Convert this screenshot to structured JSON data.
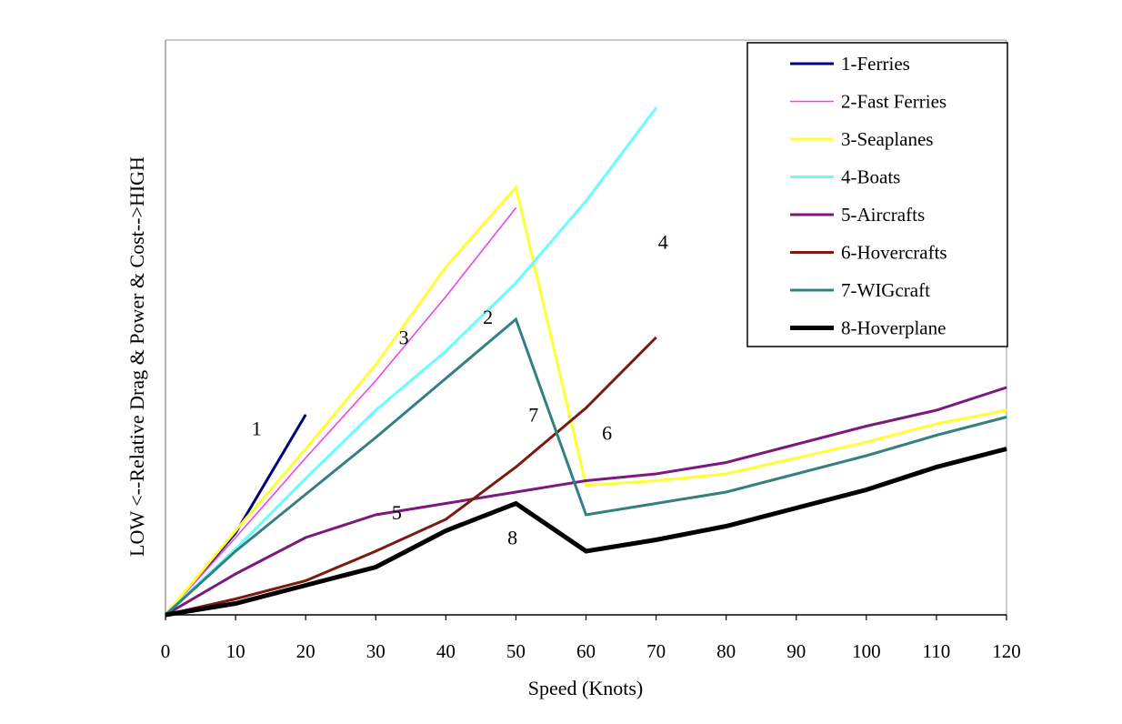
{
  "chart_data": {
    "type": "line",
    "xlabel": "Speed (Knots)",
    "ylabel": "LOW <--Relative Drag & Power & Cost-->HIGH",
    "xlim": [
      0,
      120
    ],
    "ylim": [
      0,
      100
    ],
    "grid": false,
    "legend_position": "top-right",
    "x_ticks": [
      0,
      10,
      20,
      30,
      40,
      50,
      60,
      70,
      80,
      90,
      100,
      110,
      120
    ],
    "x_tick_labels": [
      "0",
      "10",
      "20",
      "30",
      "40",
      "50",
      "60",
      "70",
      "80",
      "90",
      "100",
      "110",
      "120"
    ],
    "series": [
      {
        "name": "1-Ferries",
        "line_label": "1",
        "label_at": [
          13,
          39.5
        ],
        "color": "#000080",
        "width": 3,
        "points": [
          [
            0,
            0
          ],
          [
            10,
            18
          ],
          [
            20,
            44
          ]
        ]
      },
      {
        "name": "2-Fast Ferries",
        "line_label": "2",
        "label_at": [
          46,
          64
        ],
        "color": "#ee44ee",
        "width": 1.6,
        "points": [
          [
            0,
            0
          ],
          [
            10,
            17
          ],
          [
            20,
            34.5
          ],
          [
            30,
            51.5
          ],
          [
            40,
            70
          ],
          [
            50,
            89.5
          ]
        ]
      },
      {
        "name": "3-Seaplanes",
        "line_label": "3",
        "label_at": [
          34,
          59.5
        ],
        "color": "#ffff33",
        "width": 3,
        "points": [
          [
            0,
            0
          ],
          [
            10,
            18.5
          ],
          [
            20,
            36.5
          ],
          [
            30,
            55
          ],
          [
            40,
            76.5
          ],
          [
            50,
            94
          ],
          [
            60,
            28.5
          ],
          [
            70,
            29.5
          ],
          [
            80,
            31
          ],
          [
            90,
            34.5
          ],
          [
            100,
            38
          ],
          [
            110,
            42
          ],
          [
            120,
            45
          ]
        ]
      },
      {
        "name": "4-Boats",
        "line_label": "4",
        "label_at": [
          71,
          80.5
        ],
        "color": "#66ffff",
        "width": 3,
        "points": [
          [
            0,
            0
          ],
          [
            10,
            14.5
          ],
          [
            20,
            30
          ],
          [
            30,
            45
          ],
          [
            40,
            58
          ],
          [
            50,
            73
          ],
          [
            60,
            91
          ],
          [
            70,
            111.5
          ]
        ]
      },
      {
        "name": "5-Aircrafts",
        "line_label": "5",
        "label_at": [
          33,
          21
        ],
        "color": "#7a1a7a",
        "width": 3,
        "points": [
          [
            0,
            0
          ],
          [
            10,
            9
          ],
          [
            20,
            17
          ],
          [
            30,
            22
          ],
          [
            40,
            24.5
          ],
          [
            50,
            27
          ],
          [
            60,
            29.5
          ],
          [
            70,
            31
          ],
          [
            80,
            33.5
          ],
          [
            90,
            37.5
          ],
          [
            100,
            41.5
          ],
          [
            110,
            45
          ],
          [
            120,
            50
          ]
        ]
      },
      {
        "name": "6-Hovercrafts",
        "line_label": "6",
        "label_at": [
          63,
          38.5
        ],
        "color": "#7a1a10",
        "width": 3,
        "points": [
          [
            0,
            0
          ],
          [
            10,
            3.5
          ],
          [
            20,
            7.5
          ],
          [
            30,
            14
          ],
          [
            40,
            21
          ],
          [
            50,
            32.5
          ],
          [
            60,
            45.5
          ],
          [
            70,
            61
          ]
        ]
      },
      {
        "name": "7-WIGcraft",
        "line_label": "7",
        "label_at": [
          52.5,
          42.5
        ],
        "color": "#348080",
        "width": 3,
        "points": [
          [
            0,
            0
          ],
          [
            10,
            14
          ],
          [
            20,
            26.5
          ],
          [
            30,
            39
          ],
          [
            40,
            52
          ],
          [
            50,
            65
          ],
          [
            60,
            22
          ],
          [
            70,
            24.5
          ],
          [
            80,
            27
          ],
          [
            90,
            31
          ],
          [
            100,
            35
          ],
          [
            110,
            39.5
          ],
          [
            120,
            43.5
          ]
        ]
      },
      {
        "name": "8-Hoverplane",
        "line_label": "8",
        "label_at": [
          49.5,
          15.5
        ],
        "color": "#000000",
        "width": 5,
        "points": [
          [
            0,
            0
          ],
          [
            10,
            2.5
          ],
          [
            20,
            6.5
          ],
          [
            30,
            10.5
          ],
          [
            40,
            18.5
          ],
          [
            50,
            24.5
          ],
          [
            60,
            14
          ],
          [
            70,
            16.5
          ],
          [
            80,
            19.5
          ],
          [
            90,
            23.5
          ],
          [
            100,
            27.5
          ],
          [
            110,
            32.5
          ],
          [
            120,
            36.5
          ]
        ]
      }
    ]
  }
}
